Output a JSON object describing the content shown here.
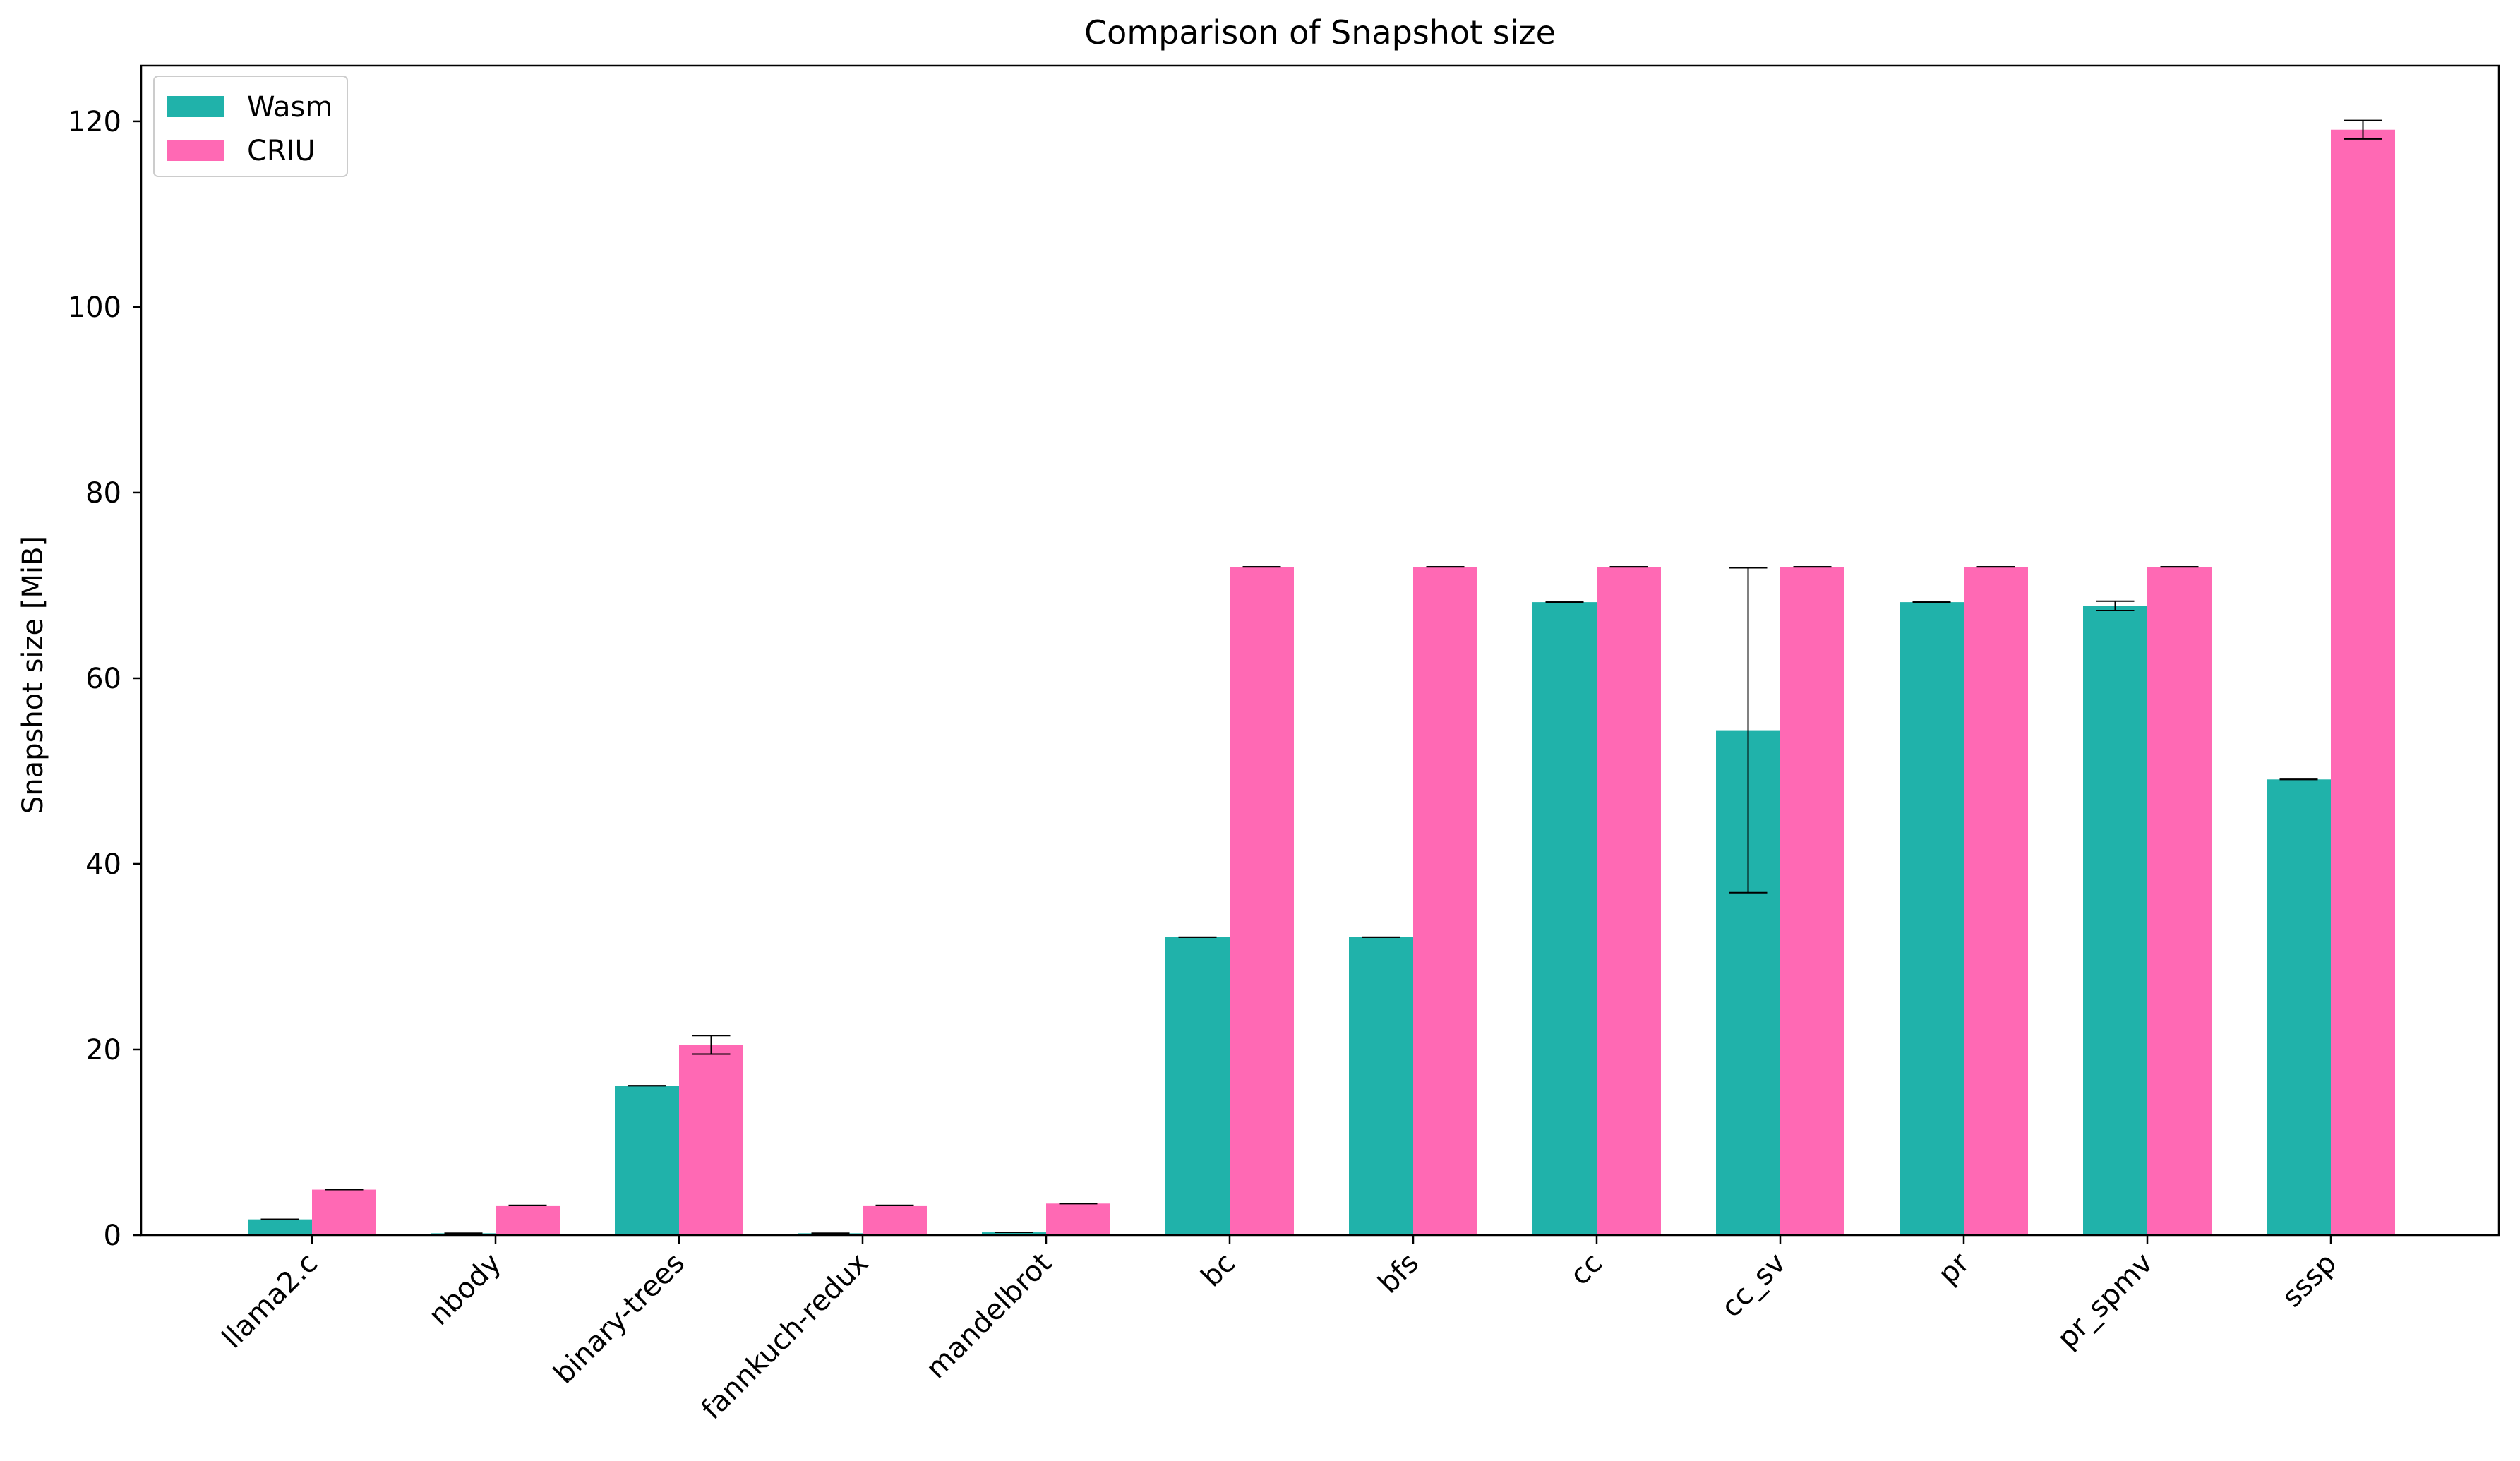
{
  "chart_data": {
    "type": "bar",
    "title": "Comparison of Snapshot size",
    "xlabel": "",
    "ylabel": "Snapshot size [MiB]",
    "ylim": [
      0,
      126
    ],
    "yticks": [
      0,
      20,
      40,
      60,
      80,
      100,
      120
    ],
    "grid": false,
    "legend_position": "top-left",
    "categories": [
      "llama2.c",
      "nbody",
      "binary-trees",
      "fannkuch-redux",
      "mandelbrot",
      "bc",
      "bfs",
      "cc",
      "cc_sv",
      "pr",
      "pr_spmv",
      "sssp"
    ],
    "series": [
      {
        "name": "Wasm",
        "color": "#20b2aa",
        "values": [
          1.7,
          0.2,
          16.1,
          0.2,
          0.3,
          32.1,
          32.1,
          68.2,
          54.4,
          68.2,
          67.8,
          49.1
        ],
        "errors": [
          0,
          0,
          0,
          0,
          0,
          0,
          0,
          0,
          17.5,
          0,
          0.5,
          0
        ]
      },
      {
        "name": "CRIU",
        "color": "#ff69b4",
        "values": [
          4.9,
          3.2,
          20.5,
          3.2,
          3.4,
          72.0,
          72.0,
          72.0,
          72.0,
          72.0,
          72.0,
          119.1
        ],
        "errors": [
          0,
          0,
          1.0,
          0,
          0,
          0,
          0,
          0,
          0,
          0,
          0,
          1.0
        ]
      }
    ]
  }
}
